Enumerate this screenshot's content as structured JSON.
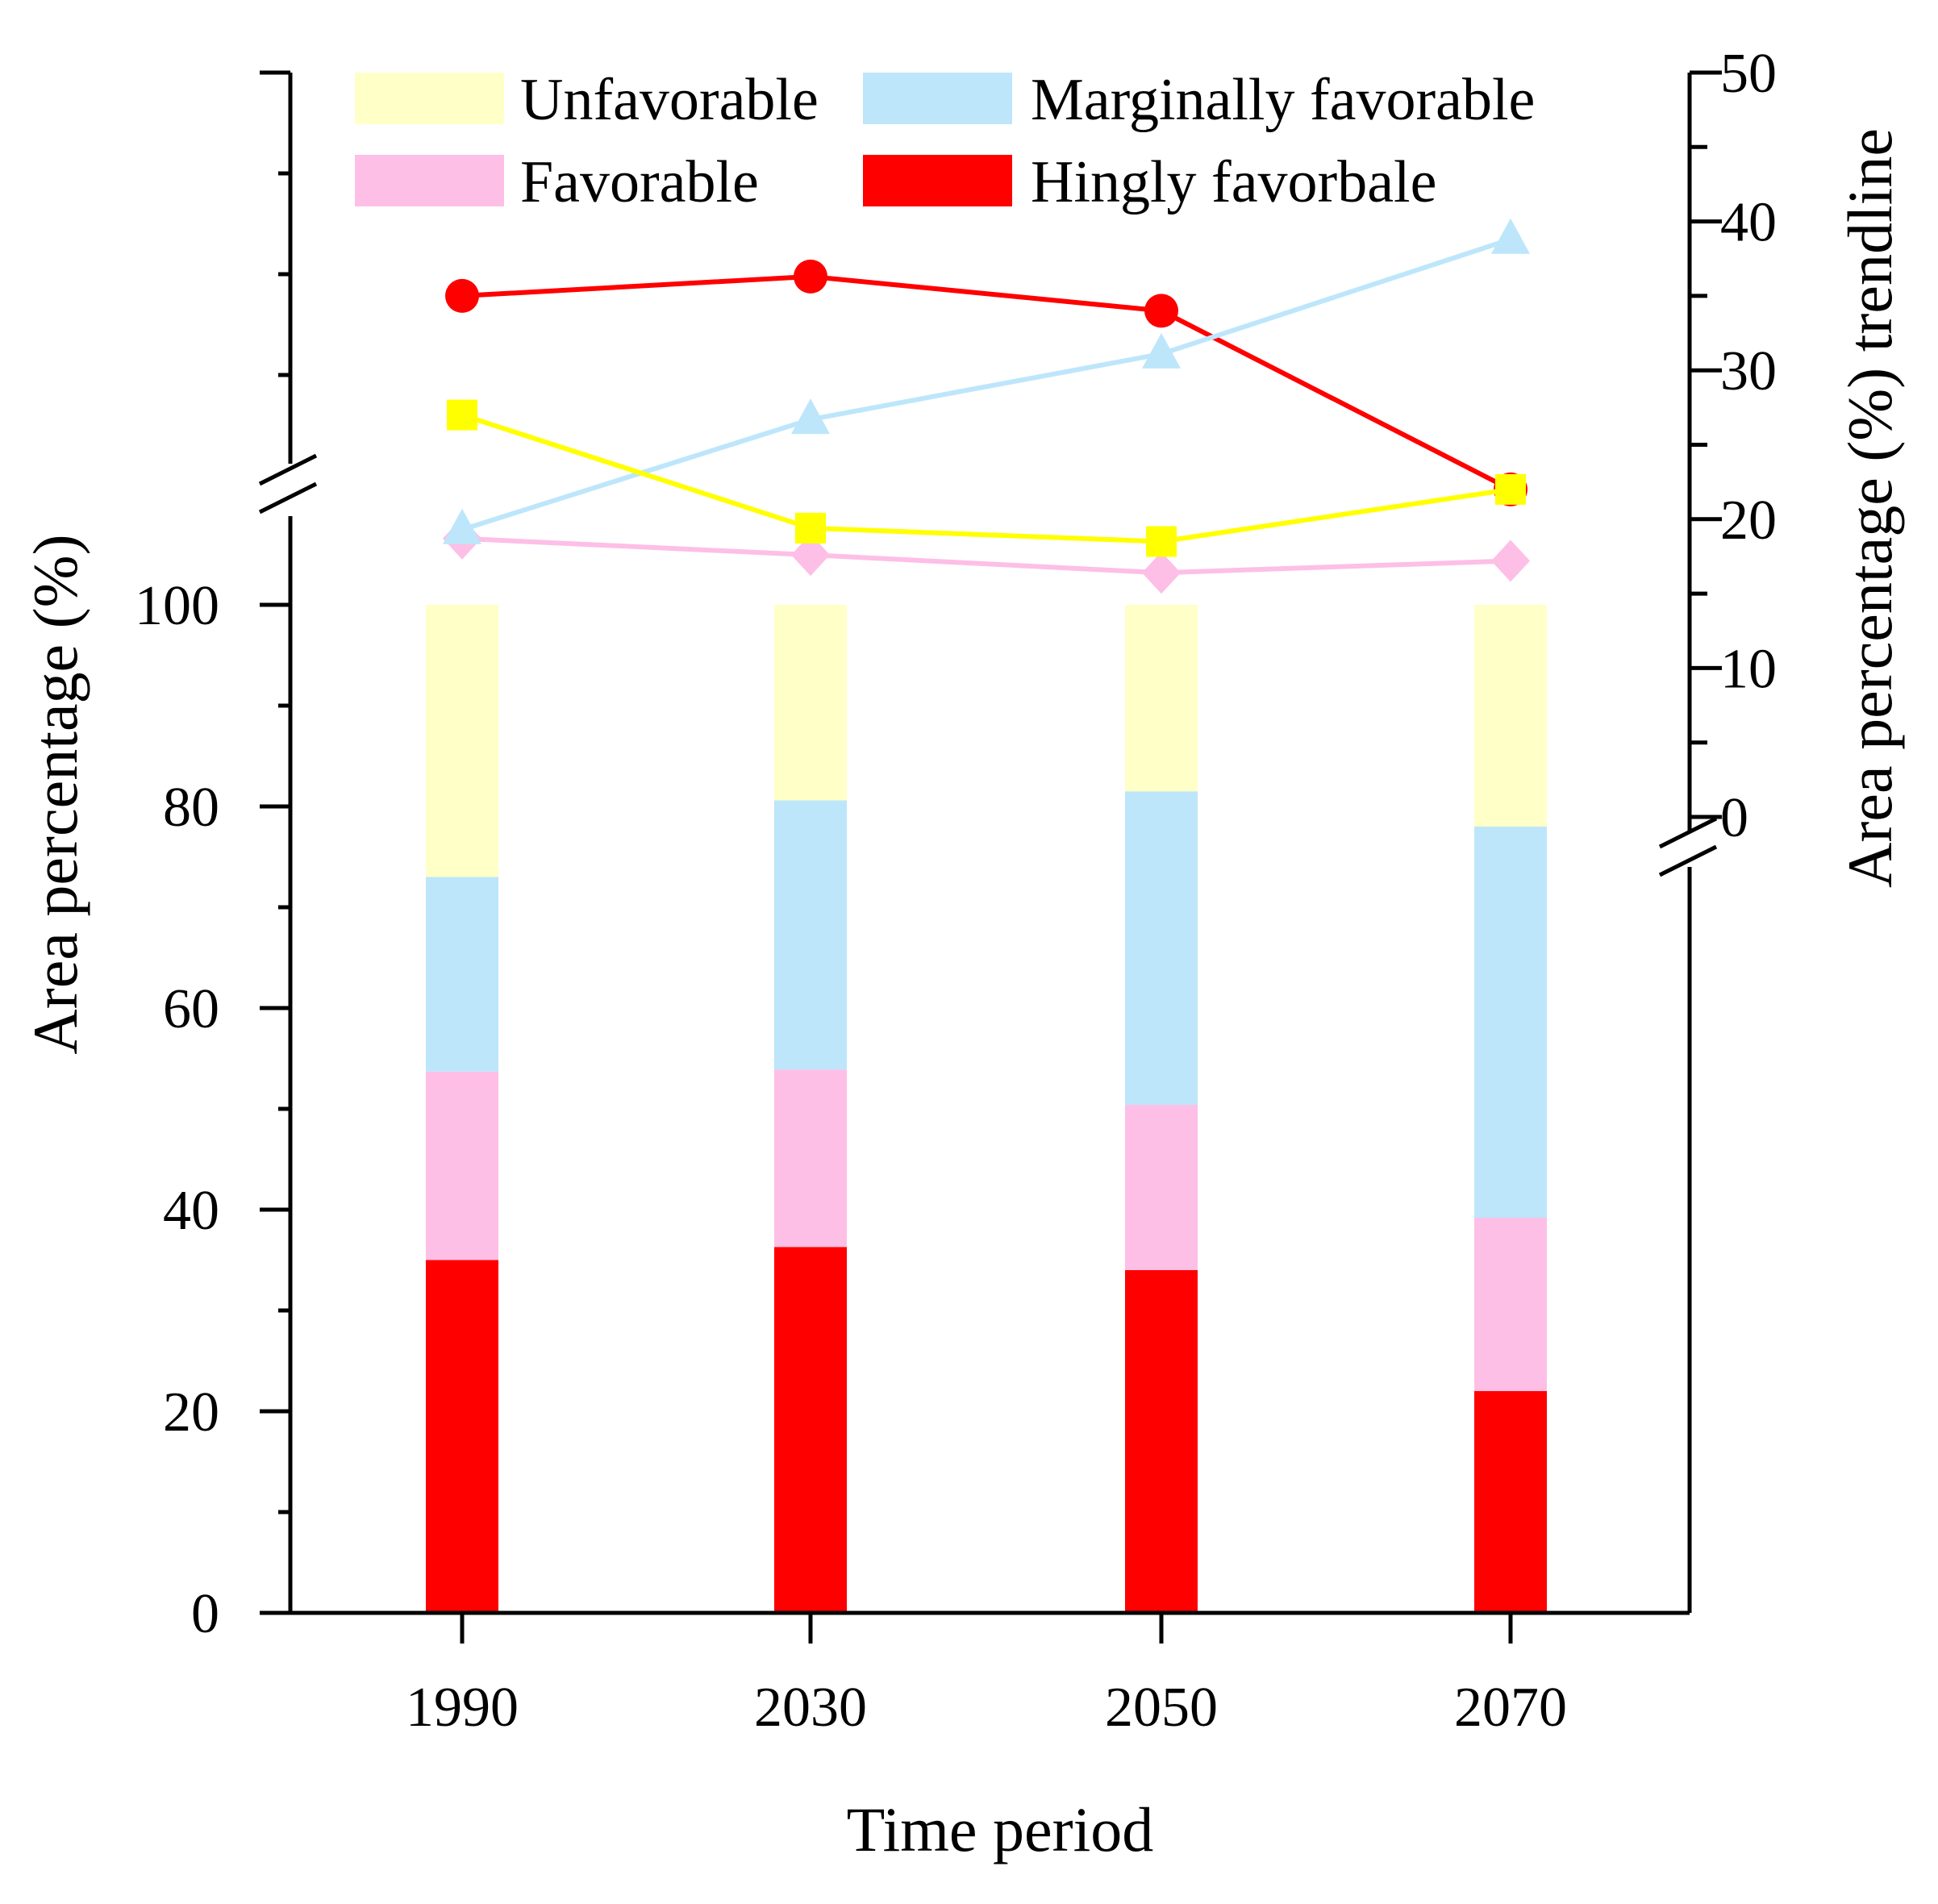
{
  "chart_data": {
    "type": "bar",
    "stacked": true,
    "categories": [
      "1990",
      "2030",
      "2050",
      "2070"
    ],
    "series": [
      {
        "name": "Hingly favorbale",
        "color": "#ff0000",
        "values": [
          35,
          36.3,
          34,
          22
        ]
      },
      {
        "name": "Favorable",
        "color": "#fdbfe6",
        "values": [
          18.7,
          17.6,
          16.4,
          17.2
        ]
      },
      {
        "name": "Marginally favorable",
        "color": "#bde6fb",
        "values": [
          19.3,
          26.7,
          31.1,
          38.8
        ]
      },
      {
        "name": "Unfavorable",
        "color": "#ffffc8",
        "values": [
          27,
          19.4,
          18.5,
          22
        ]
      }
    ],
    "trendlines": [
      {
        "name": "Hingly favorbale",
        "color": "#ff0000",
        "marker": "circle",
        "values": [
          35,
          36.3,
          34,
          22
        ]
      },
      {
        "name": "Favorable",
        "color": "#fdbfe6",
        "marker": "diamond",
        "values": [
          18.7,
          17.6,
          16.4,
          17.2
        ]
      },
      {
        "name": "Marginally favorable",
        "color": "#bde6fb",
        "marker": "triangle",
        "values": [
          19.3,
          26.7,
          31.1,
          38.8
        ]
      },
      {
        "name": "Unfavorable",
        "color": "#ffff00",
        "marker": "square",
        "values": [
          27,
          19.4,
          18.5,
          22
        ]
      }
    ],
    "xlabel": "Time period",
    "ylabel": "Area percentage (%)",
    "y2label": "Area percentage (%) trendline",
    "ylim": [
      0,
      100
    ],
    "yticks": [
      "0",
      "20",
      "40",
      "60",
      "80",
      "100"
    ],
    "y2lim": [
      0,
      50
    ],
    "y2ticks": [
      "0",
      "10",
      "20",
      "30",
      "40",
      "50"
    ],
    "legend": {
      "placement": "top",
      "entries": [
        {
          "label": "Unfavorable",
          "color": "#ffffc8"
        },
        {
          "label": "Marginally favorable",
          "color": "#bde6fb"
        },
        {
          "label": "Favorable",
          "color": "#fdbfe6"
        },
        {
          "label": "Hingly favorbale",
          "color": "#ff0000"
        }
      ]
    },
    "axis_breaks": true,
    "grid": false
  }
}
